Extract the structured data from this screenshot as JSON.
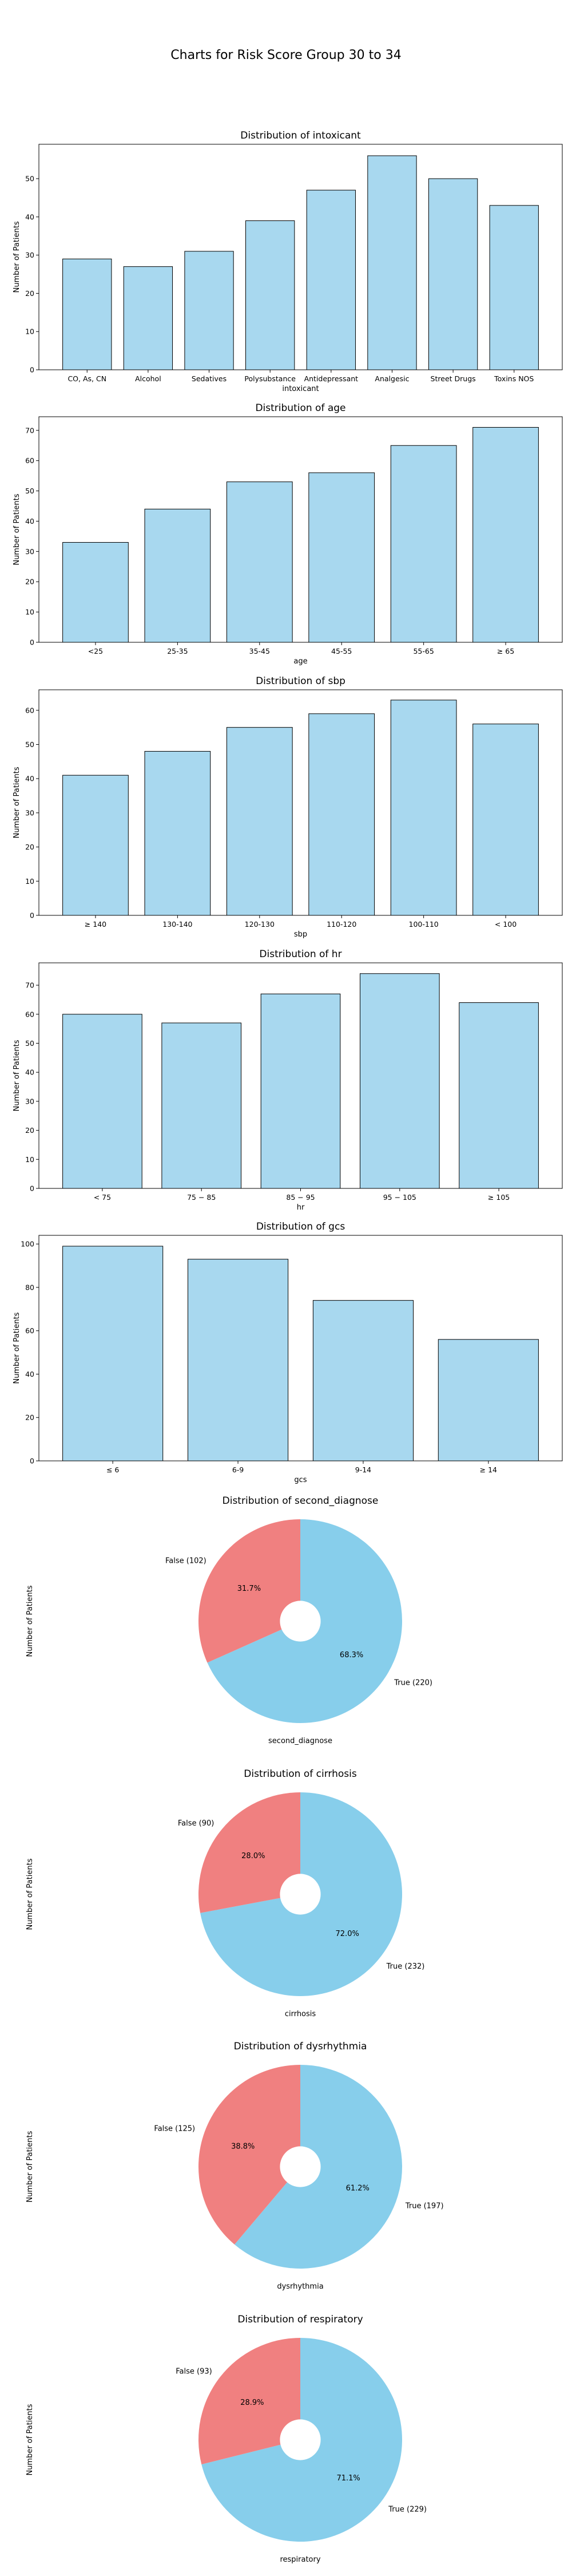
{
  "figure": {
    "title": "Charts for Risk Score Group 30 to 34"
  },
  "colors": {
    "bar": "#a8d8ef",
    "pie_true": "#87ceeb",
    "pie_false": "#f08080",
    "edge": "#000000"
  },
  "chart_data": [
    {
      "type": "bar",
      "title": "Distribution of intoxicant",
      "xlabel": "intoxicant",
      "ylabel": "Number of Patients",
      "categories": [
        "CO, As, CN",
        "Alcohol",
        "Sedatives",
        "Polysubstance",
        "Antidepressant",
        "Analgesic",
        "Street Drugs",
        "Toxins NOS"
      ],
      "values": [
        29,
        27,
        31,
        39,
        47,
        56,
        50,
        43
      ],
      "ylim": [
        0,
        59
      ],
      "yticks": [
        0,
        10,
        20,
        30,
        40,
        50
      ]
    },
    {
      "type": "bar",
      "title": "Distribution of age",
      "xlabel": "age",
      "ylabel": "Number of Patients",
      "categories": [
        "<25",
        "25-35",
        "35-45",
        "45-55",
        "55-65",
        "≥  65"
      ],
      "values": [
        33,
        44,
        53,
        56,
        65,
        71
      ],
      "ylim": [
        0,
        74.5
      ],
      "yticks": [
        0,
        10,
        20,
        30,
        40,
        50,
        60,
        70
      ]
    },
    {
      "type": "bar",
      "title": "Distribution of sbp",
      "xlabel": "sbp",
      "ylabel": "Number of Patients",
      "categories": [
        "≥  140",
        "130-140",
        "120-130",
        "110-120",
        "100-110",
        "< 100"
      ],
      "values": [
        41,
        48,
        55,
        59,
        63,
        56
      ],
      "ylim": [
        0,
        66
      ],
      "yticks": [
        0,
        10,
        20,
        30,
        40,
        50,
        60
      ]
    },
    {
      "type": "bar",
      "title": "Distribution of hr",
      "xlabel": "hr",
      "ylabel": "Number of Patients",
      "categories": [
        "< 75",
        "75 − 85",
        "85 − 95",
        "95 − 105",
        "≥ 105"
      ],
      "values": [
        60,
        57,
        67,
        74,
        64
      ],
      "ylim": [
        0,
        77.7
      ],
      "yticks": [
        0,
        10,
        20,
        30,
        40,
        50,
        60,
        70
      ]
    },
    {
      "type": "bar",
      "title": "Distribution of gcs",
      "xlabel": "gcs",
      "ylabel": "Number of Patients",
      "categories": [
        "≤ 6",
        "6-9",
        "9-14",
        "≥ 14"
      ],
      "values": [
        99,
        93,
        74,
        56
      ],
      "ylim": [
        0,
        104
      ],
      "yticks": [
        0,
        20,
        40,
        60,
        80,
        100
      ]
    },
    {
      "type": "pie",
      "title": "Distribution of second_diagnose",
      "xlabel": "second_diagnose",
      "ylabel": "Number of Patients",
      "labels": [
        "True (220)",
        "False (102)"
      ],
      "values": [
        220,
        102
      ],
      "percent_labels": [
        "68.3%",
        "31.7%"
      ]
    },
    {
      "type": "pie",
      "title": "Distribution of cirrhosis",
      "xlabel": "cirrhosis",
      "ylabel": "Number of Patients",
      "labels": [
        "True (232)",
        "False (90)"
      ],
      "values": [
        232,
        90
      ],
      "percent_labels": [
        "72.0%",
        "28.0%"
      ]
    },
    {
      "type": "pie",
      "title": "Distribution of dysrhythmia",
      "xlabel": "dysrhythmia",
      "ylabel": "Number of Patients",
      "labels": [
        "True (197)",
        "False (125)"
      ],
      "values": [
        197,
        125
      ],
      "percent_labels": [
        "61.2%",
        "38.8%"
      ]
    },
    {
      "type": "pie",
      "title": "Distribution of respiratory",
      "xlabel": "respiratory",
      "ylabel": "Number of Patients",
      "labels": [
        "True (229)",
        "False (93)"
      ],
      "values": [
        229,
        93
      ],
      "percent_labels": [
        "71.1%",
        "28.9%"
      ]
    }
  ]
}
